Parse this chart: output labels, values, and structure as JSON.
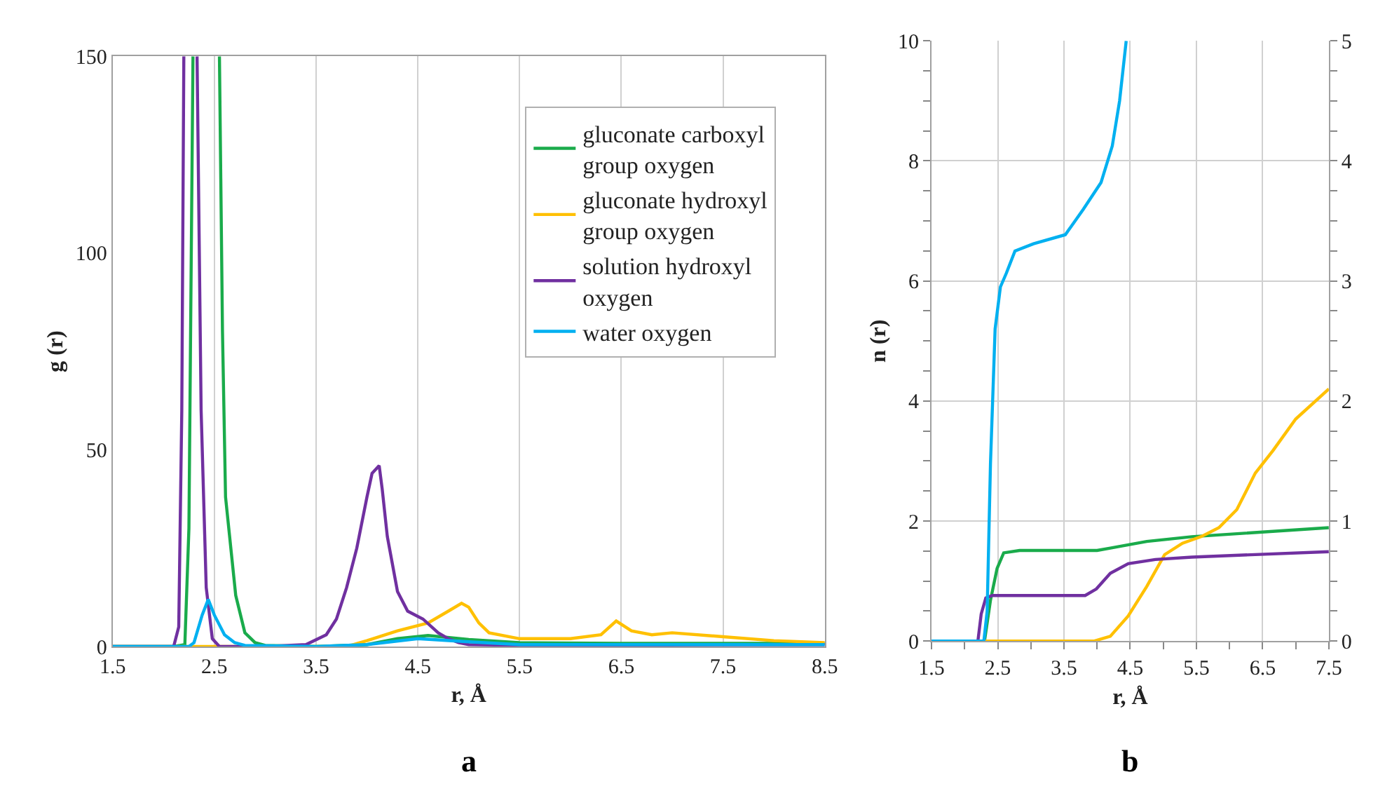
{
  "chart_data": [
    {
      "type": "line",
      "xlabel": "r, Å",
      "ylabel": "g (r)",
      "annotations": [
        "a"
      ],
      "xlim": [
        1.5,
        8.5
      ],
      "xticks": [
        1.5,
        2.5,
        3.5,
        4.5,
        5.5,
        6.5,
        7.5,
        8.5
      ],
      "ylim": [
        0,
        150
      ],
      "yticks": [
        0,
        50,
        100,
        150
      ],
      "grid": "x",
      "legend": "top right",
      "series": [
        {
          "name": "gluconate carboxyl group oxygen",
          "color": "#1aab4b",
          "x": [
            1.5,
            2.1,
            2.21,
            2.25,
            2.29,
            2.4,
            2.55,
            2.58,
            2.61,
            2.71,
            2.8,
            2.9,
            3.0,
            3.5,
            4.0,
            4.3,
            4.6,
            5.0,
            5.5,
            6.5,
            8.5
          ],
          "values": [
            0,
            0,
            0.5,
            30,
            150,
            null,
            150,
            80,
            38,
            13,
            3.5,
            1,
            0.3,
            0,
            0.5,
            2,
            2.8,
            1.8,
            1,
            0.8,
            0.8
          ]
        },
        {
          "name": "gluconate hydroxyl group oxygen",
          "color": "#ffc000",
          "x": [
            1.5,
            3.8,
            4.0,
            4.3,
            4.6,
            4.8,
            4.93,
            5.0,
            5.1,
            5.2,
            5.5,
            6.0,
            6.3,
            6.45,
            6.6,
            6.8,
            7.0,
            7.5,
            8.0,
            8.5
          ],
          "values": [
            0,
            0,
            1.5,
            4,
            6,
            9,
            11,
            10,
            6,
            3.5,
            2,
            2,
            3,
            6.5,
            4,
            3,
            3.5,
            2.5,
            1.5,
            1
          ]
        },
        {
          "name": "solution hydroxyl oxygen",
          "color": "#7030a0",
          "x": [
            1.5,
            2.1,
            2.15,
            2.18,
            2.2,
            2.27,
            2.33,
            2.37,
            2.42,
            2.48,
            2.55,
            3.0,
            3.4,
            3.6,
            3.7,
            3.8,
            3.9,
            4.0,
            4.05,
            4.12,
            4.15,
            4.2,
            4.3,
            4.4,
            4.55,
            4.7,
            4.8,
            4.9,
            5.0,
            5.5,
            8.5
          ],
          "values": [
            0,
            0,
            5,
            60,
            150,
            null,
            150,
            60,
            15,
            2,
            0,
            0,
            0.5,
            3,
            7,
            15,
            25,
            38,
            44,
            46,
            40,
            28,
            14,
            9,
            7,
            3.5,
            2,
            1,
            0.5,
            0.3,
            0.5
          ]
        },
        {
          "name": "water oxygen",
          "color": "#00b0f0",
          "x": [
            1.5,
            2.25,
            2.3,
            2.38,
            2.44,
            2.5,
            2.6,
            2.7,
            2.8,
            3.5,
            4.0,
            4.5,
            5.0,
            5.5,
            8.5
          ],
          "values": [
            0,
            0,
            1,
            8,
            12,
            8,
            3,
            1,
            0.3,
            0,
            0.5,
            2,
            1.2,
            0.5,
            0.5
          ]
        }
      ]
    },
    {
      "type": "line",
      "xlabel": "r, Å",
      "ylabel": "n (r)",
      "annotations": [
        "b"
      ],
      "xlim": [
        1.5,
        7.5
      ],
      "xticks": [
        1.5,
        {
          "value": 2,
          "label": null
        },
        2.5,
        {
          "value": 3,
          "label": null
        },
        3.5,
        {
          "value": 4,
          "label": null
        },
        4.5,
        {
          "value": 5,
          "label": null
        },
        5.5,
        {
          "value": 6,
          "label": null
        },
        6.5,
        {
          "value": 7,
          "label": null
        },
        7.5
      ],
      "ylim": [
        0,
        10
      ],
      "yticks": [
        0,
        {
          "value": 0.5,
          "label": null
        },
        {
          "value": 1,
          "label": null
        },
        {
          "value": 1.5,
          "label": null
        },
        2,
        {
          "value": 2.5,
          "label": null
        },
        {
          "value": 3,
          "label": null
        },
        {
          "value": 3.5,
          "label": null
        },
        4,
        {
          "value": 4.5,
          "label": null
        },
        {
          "value": 5,
          "label": null
        },
        {
          "value": 5.5,
          "label": null
        },
        6,
        {
          "value": 6.5,
          "label": null
        },
        {
          "value": 7,
          "label": null
        },
        {
          "value": 7.5,
          "label": null
        },
        8,
        {
          "value": 8.5,
          "label": null
        },
        {
          "value": 9,
          "label": null
        },
        {
          "value": 9.5,
          "label": null
        },
        10
      ],
      "y2lim": [
        0,
        5
      ],
      "y2ticks": [
        0,
        {
          "value": 0.25,
          "label": null
        },
        {
          "value": 0.5,
          "label": null
        },
        {
          "value": 0.75,
          "label": null
        },
        1,
        {
          "value": 1.25,
          "label": null
        },
        {
          "value": 1.5,
          "label": null
        },
        {
          "value": 1.75,
          "label": null
        },
        2,
        {
          "value": 2.25,
          "label": null
        },
        {
          "value": 2.5,
          "label": null
        },
        {
          "value": 2.75,
          "label": null
        },
        3,
        {
          "value": 3.25,
          "label": null
        },
        {
          "value": 3.5,
          "label": null
        },
        {
          "value": 3.75,
          "label": null
        },
        4,
        {
          "value": 4.25,
          "label": null
        },
        {
          "value": 4.5,
          "label": null
        },
        {
          "value": 4.75,
          "label": null
        },
        5
      ],
      "grid": true,
      "series": [
        {
          "color": "#1aab4b",
          "x": [
            1.5,
            2.3,
            2.39,
            2.49,
            2.59,
            2.83,
            3.5,
            4.0,
            4.2,
            4.75,
            5.43,
            7.5
          ],
          "values": [
            0,
            0,
            0.68,
            1.21,
            1.47,
            1.51,
            1.51,
            1.51,
            1.55,
            1.66,
            1.74,
            1.89
          ]
        },
        {
          "color": "#ffc000",
          "x": [
            1.5,
            3.95,
            4.2,
            4.47,
            4.75,
            5.02,
            5.29,
            5.57,
            5.84,
            6.11,
            6.39,
            6.66,
            7.0,
            7.5
          ],
          "values": [
            0,
            0,
            0.08,
            0.42,
            0.91,
            1.44,
            1.63,
            1.74,
            1.89,
            2.19,
            2.8,
            3.18,
            3.7,
            4.2
          ]
        },
        {
          "color": "#7030a0",
          "x": [
            1.5,
            2.2,
            2.25,
            2.32,
            2.42,
            3.82,
            3.99,
            4.2,
            4.47,
            4.88,
            5.43,
            7.5
          ],
          "values": [
            0,
            0,
            0.45,
            0.72,
            0.76,
            0.76,
            0.87,
            1.13,
            1.29,
            1.36,
            1.4,
            1.49
          ]
        },
        {
          "color": "#00b0f0",
          "x": [
            1.5,
            2.29,
            2.34,
            2.39,
            2.46,
            2.54,
            2.63,
            2.76,
            3.04,
            3.52,
            3.79,
            4.06,
            4.23,
            4.34,
            4.44
          ],
          "values": [
            0,
            0,
            0.5,
            2.95,
            5.2,
            5.9,
            6.13,
            6.5,
            6.62,
            6.77,
            7.19,
            7.64,
            8.25,
            9.0,
            10
          ]
        }
      ]
    }
  ]
}
